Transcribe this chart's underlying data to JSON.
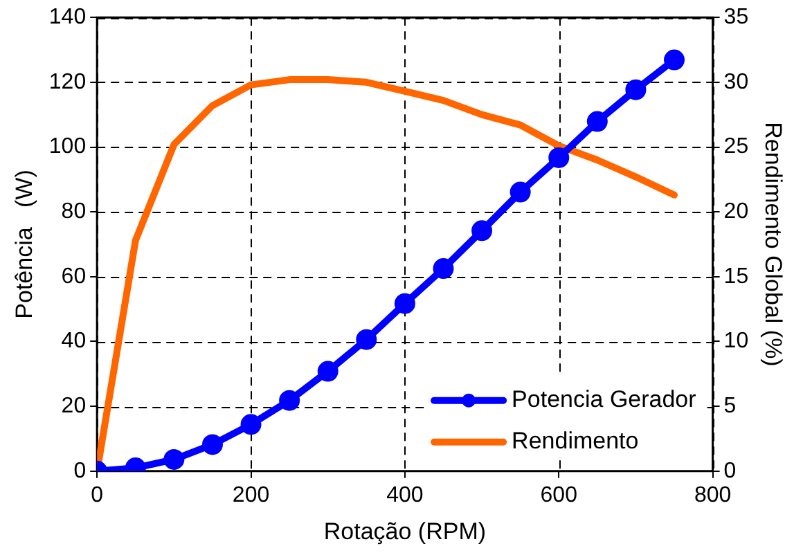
{
  "chart_data": {
    "type": "line",
    "xlabel": "Rotação (RPM)",
    "ylabel": "Potência   (W)",
    "y2label": "Rendimento Global (%)",
    "x": [
      0,
      50,
      100,
      150,
      200,
      250,
      300,
      350,
      400,
      450,
      500,
      550,
      600,
      650,
      700,
      750
    ],
    "series": [
      {
        "name": "Potencia Gerador",
        "color": "#0000ff",
        "marker": "circle",
        "values": [
          0,
          1,
          3.6,
          8.2,
          14.4,
          21.8,
          30.8,
          40.6,
          51.7,
          62.5,
          74.2,
          86.1,
          96.7,
          107.9,
          117.7,
          126.9
        ]
      },
      {
        "name": "Rendimento",
        "color": "#ff6600",
        "marker": "none",
        "axis": "y2",
        "values": [
          0,
          17.8,
          25.2,
          28.2,
          29.8,
          30.2,
          30.2,
          30,
          29.3,
          28.6,
          27.5,
          26.7,
          25.1,
          24,
          22.7,
          21.3
        ]
      }
    ],
    "xlim": [
      0,
      800
    ],
    "xticks": [
      0,
      200,
      400,
      600,
      800
    ],
    "ylim": [
      0,
      140
    ],
    "yticks": [
      0,
      20,
      40,
      60,
      80,
      100,
      120,
      140
    ],
    "y2lim": [
      0,
      35
    ],
    "y2ticks": [
      0,
      5,
      10,
      15,
      20,
      25,
      30,
      35
    ],
    "grid": true,
    "line_style": "solid",
    "legend": "bottom right"
  }
}
